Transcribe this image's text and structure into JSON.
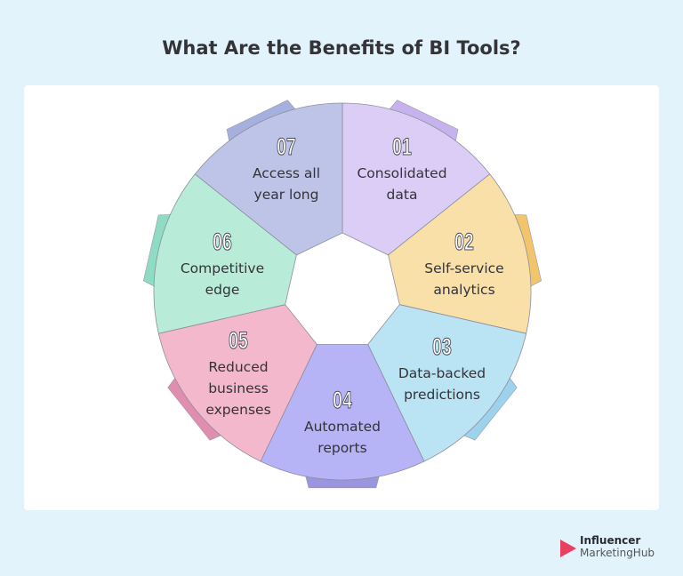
{
  "title": "What Are the Benefits of BI Tools?",
  "segments": [
    {
      "number": "01",
      "lines": [
        "Consolidated",
        "data"
      ],
      "color": "#dccdf7",
      "tab_color": "#c6b3ee"
    },
    {
      "number": "02",
      "lines": [
        "Self-service",
        "analytics"
      ],
      "color": "#f9dfa8",
      "tab_color": "#f2c56c"
    },
    {
      "number": "03",
      "lines": [
        "Data-backed",
        "predictions"
      ],
      "color": "#bae3f4",
      "tab_color": "#9dd2ec"
    },
    {
      "number": "04",
      "lines": [
        "Automated",
        "reports"
      ],
      "color": "#b6b3f6",
      "tab_color": "#9995de"
    },
    {
      "number": "05",
      "lines": [
        "Reduced",
        "business",
        "expenses"
      ],
      "color": "#f4b8cc",
      "tab_color": "#e08daf"
    },
    {
      "number": "06",
      "lines": [
        "Competitive",
        "edge"
      ],
      "color": "#b8ecd9",
      "tab_color": "#8ddcc3"
    },
    {
      "number": "07",
      "lines": [
        "Access all",
        "year long"
      ],
      "color": "#bdc4e7",
      "tab_color": "#a6b0de"
    }
  ],
  "logo": {
    "line1": "Influencer",
    "line2": "MarketingHub",
    "brand_color": "#e8405e"
  }
}
